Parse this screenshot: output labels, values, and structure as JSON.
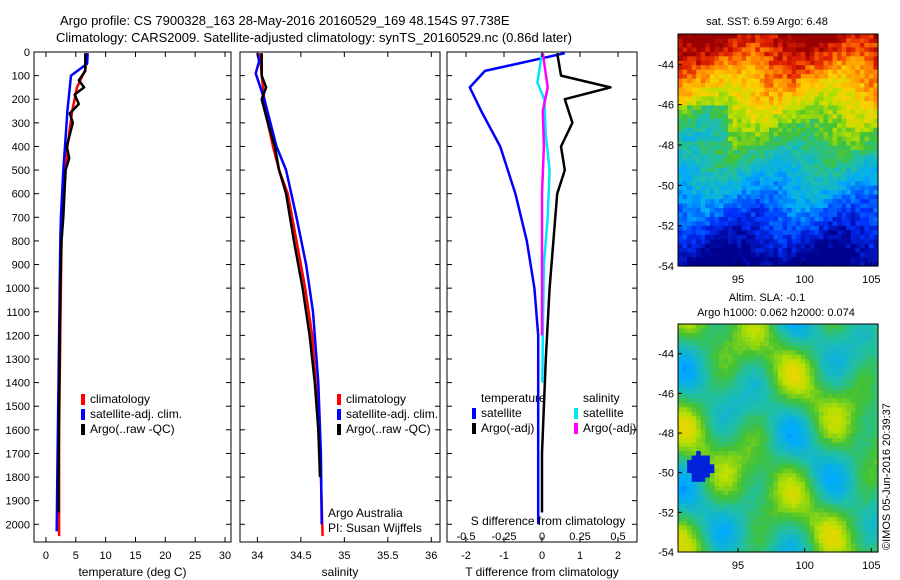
{
  "header": {
    "line1": "Argo profile: CS 7900328_163 28-May-2016 20160529_169 48.154S 97.738E",
    "line2": "Climatology: CARS2009. Satellite-adjusted climatology: synTS_20160529.nc (0.86d later)"
  },
  "colors": {
    "climatology": "#ff0000",
    "satellite": "#0000ff",
    "argo": "#000000",
    "sal_satellite": "#00e5ff",
    "sal_argo": "#ff00ff"
  },
  "chart_data": [
    {
      "type": "line",
      "xlabel": "temperature (deg C)",
      "ylabel": "",
      "xlim": [
        -2,
        31
      ],
      "ylim": [
        2075,
        0
      ],
      "xticks": [
        0,
        5,
        10,
        15,
        20,
        25,
        30
      ],
      "yticks": [
        0,
        100,
        200,
        300,
        400,
        500,
        600,
        700,
        800,
        900,
        1000,
        1100,
        1200,
        1300,
        1400,
        1500,
        1600,
        1700,
        1800,
        1900,
        2000
      ],
      "legend": [
        "climatology",
        "satellite-adj. clim.",
        "Argo(..raw -QC)"
      ],
      "series": [
        {
          "name": "climatology",
          "color": "#ff0000",
          "x": [
            6.8,
            6.6,
            5.2,
            4.4,
            3.6,
            3.3,
            3.0,
            2.8,
            2.6,
            2.5,
            2.4,
            2.3,
            2.2,
            2.2,
            2.2
          ],
          "y": [
            5,
            75,
            150,
            250,
            400,
            500,
            600,
            700,
            800,
            1000,
            1200,
            1400,
            1600,
            1800,
            2050
          ]
        },
        {
          "name": "satellite-adj. clim.",
          "color": "#0000ff",
          "x": [
            7.0,
            6.9,
            4.2,
            3.6,
            3.2,
            2.9,
            2.7,
            2.5,
            2.4,
            2.3,
            2.2,
            2.1,
            2.0,
            1.9,
            1.8
          ],
          "y": [
            5,
            50,
            100,
            250,
            400,
            500,
            600,
            700,
            800,
            1000,
            1200,
            1400,
            1600,
            1800,
            2030
          ]
        },
        {
          "name": "Argo(..raw -QC)",
          "color": "#000000",
          "x": [
            6.6,
            6.6,
            5.5,
            6.4,
            4.8,
            5.5,
            4.0,
            4.5,
            3.5,
            3.9,
            3.3,
            3.1,
            2.9,
            2.6,
            2.4,
            2.3,
            2.2,
            2.1,
            2.1
          ],
          "y": [
            5,
            80,
            120,
            150,
            180,
            220,
            260,
            300,
            400,
            450,
            500,
            600,
            700,
            800,
            1000,
            1200,
            1500,
            1800,
            1950
          ]
        }
      ]
    },
    {
      "type": "line",
      "xlabel": "salinity",
      "ylabel": "",
      "xlim": [
        33.8,
        36.1
      ],
      "ylim": [
        2075,
        0
      ],
      "xticks": [
        34,
        34.5,
        35,
        35.5,
        36
      ],
      "xticklabels": [
        "34",
        "34.5",
        "35",
        "35.5",
        "36"
      ],
      "legend": [
        "climatology",
        "satellite-adj. clim.",
        "Argo(..raw -QC)"
      ],
      "annotations": [
        "Argo Australia",
        "PI: Susan Wijffels"
      ],
      "series": [
        {
          "name": "climatology",
          "color": "#ff0000",
          "x": [
            34.03,
            34.05,
            34.08,
            34.12,
            34.18,
            34.25,
            34.35,
            34.45,
            34.55,
            34.63,
            34.69,
            34.73,
            34.75
          ],
          "y": [
            5,
            100,
            200,
            300,
            400,
            500,
            600,
            800,
            1000,
            1200,
            1500,
            1800,
            2050
          ]
        },
        {
          "name": "satellite-adj. clim.",
          "color": "#0000ff",
          "x": [
            34.0,
            34.02,
            33.98,
            34.08,
            34.15,
            34.22,
            34.33,
            34.45,
            34.56,
            34.64,
            34.7,
            34.73,
            34.74
          ],
          "y": [
            5,
            40,
            90,
            200,
            300,
            400,
            500,
            700,
            900,
            1100,
            1400,
            1700,
            2000
          ]
        },
        {
          "name": "Argo(..raw -QC)",
          "color": "#000000",
          "x": [
            34.05,
            34.05,
            34.1,
            34.05,
            34.12,
            34.2,
            34.25,
            34.33,
            34.42,
            34.52,
            34.6,
            34.66,
            34.7,
            34.72
          ],
          "y": [
            5,
            100,
            150,
            200,
            300,
            400,
            500,
            600,
            800,
            1000,
            1200,
            1400,
            1600,
            1800
          ]
        }
      ]
    },
    {
      "type": "line",
      "xlabel": "T difference from climatology",
      "xlabel_top": "S difference from climatology",
      "xlim": [
        -2.5,
        2.5
      ],
      "ylim": [
        2075,
        0
      ],
      "xticks": [
        -2,
        -1,
        0,
        1,
        2
      ],
      "xticklabels": [
        "-2",
        "-1",
        "0",
        "1",
        "2"
      ],
      "xticks_s": [
        -0.5,
        -0.25,
        0,
        0.25,
        0.5
      ],
      "xticklabels_s": [
        "-0.5",
        "-0.25",
        "0",
        "0.25",
        "0.5"
      ],
      "legend_groups": [
        {
          "title": "temperature",
          "entries": [
            "satellite",
            "Argo(-adj)"
          ]
        },
        {
          "title": "salinity",
          "entries": [
            "satellite",
            "Argo(-adj)"
          ]
        }
      ],
      "series": [
        {
          "name": "temperature satellite",
          "color": "#0000ff",
          "x": [
            0.6,
            -1.5,
            -1.9,
            -1.6,
            -1.1,
            -0.7,
            -0.4,
            -0.2,
            -0.1,
            -0.1,
            -0.1,
            -0.1
          ],
          "y": [
            5,
            80,
            150,
            250,
            400,
            600,
            800,
            1000,
            1200,
            1500,
            1800,
            2000
          ]
        },
        {
          "name": "temperature Argo(-adj)",
          "color": "#000000",
          "x": [
            0.4,
            0.5,
            1.8,
            0.6,
            0.8,
            0.5,
            0.6,
            0.4,
            0.3,
            0.2,
            0.1,
            0.0,
            0.0
          ],
          "y": [
            5,
            100,
            150,
            200,
            300,
            400,
            500,
            600,
            800,
            1000,
            1300,
            1700,
            1950
          ]
        },
        {
          "name": "salinity satellite",
          "color": "#00e5ff",
          "x": [
            0.0,
            -0.12,
            0.06,
            0.1,
            0.2,
            0.15,
            0.05,
            0.02,
            0.01
          ],
          "y": [
            5,
            130,
            200,
            350,
            500,
            700,
            900,
            1200,
            1400
          ]
        },
        {
          "name": "salinity Argo(-adj)",
          "color": "#ff00ff",
          "x": [
            0.02,
            0.15,
            0.02,
            0.05,
            0.0,
            0.0,
            0.0,
            0.0
          ],
          "y": [
            5,
            150,
            250,
            400,
            600,
            800,
            1000,
            1200
          ]
        }
      ]
    },
    {
      "type": "heatmap",
      "title": "sat. SST: 6.59 Argo: 6.48",
      "xlim": [
        90.5,
        105.5
      ],
      "ylim": [
        -54,
        -42.5
      ],
      "xticks": [
        95,
        100,
        105
      ],
      "yticks": [
        -44,
        -46,
        -48,
        -50,
        -52,
        -54
      ]
    },
    {
      "type": "heatmap",
      "title": "Altim. SLA: -0.1",
      "subtitle": "Argo h1000: 0.062 h2000: 0.074",
      "xlim": [
        90.5,
        105.5
      ],
      "ylim": [
        -54,
        -42.5
      ],
      "xticks": [
        95,
        100,
        105
      ],
      "yticks": [
        -44,
        -46,
        -48,
        -50,
        -52,
        -54
      ]
    }
  ],
  "credit": "©IMOS 05-Jun-2016 20:39:37"
}
